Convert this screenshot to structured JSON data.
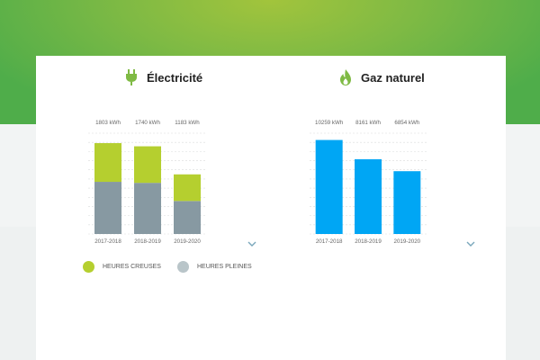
{
  "colors": {
    "hero_green": "#4fad4a",
    "hero_lime": "#a2c43c",
    "offpeak": "#b5cf2f",
    "peak": "#8799a2",
    "gas": "#00a6f4",
    "legend_peak": "#b9c5c9",
    "grid": "#d9dcdc",
    "chevron": "#79a7bb"
  },
  "electricity": {
    "title": "Électricité",
    "icon": "plug-icon"
  },
  "gas": {
    "title": "Gaz naturel",
    "icon": "flame-icon"
  },
  "legend": {
    "offpeak_label": "HEURES CREUSES",
    "peak_label": "HEURES PLEINES"
  },
  "chart_data": [
    {
      "type": "bar",
      "stacked": true,
      "unit": "kWh",
      "categories": [
        "2017-2018",
        "2018-2019",
        "2019-2020"
      ],
      "totals_labels": [
        "1803 kWh",
        "1740 kWh",
        "1183 kWh"
      ],
      "series": [
        {
          "name": "HEURES PLEINES",
          "values": [
            1035,
            1015,
            655
          ],
          "color": "#8799a2"
        },
        {
          "name": "HEURES CREUSES",
          "values": [
            768,
            725,
            528
          ],
          "color": "#b5cf2f"
        }
      ],
      "ylim": [
        0,
        2000
      ],
      "grid": true,
      "legend": "bottom-left"
    },
    {
      "type": "bar",
      "unit": "kWh",
      "categories": [
        "2017-2018",
        "2018-2019",
        "2019-2020"
      ],
      "totals_labels": [
        "10259 kWh",
        "8161 kWh",
        "6854 kWh"
      ],
      "series": [
        {
          "values": [
            10259,
            8161,
            6854
          ],
          "color": "#00a6f4"
        }
      ],
      "ylim": [
        0,
        11000
      ],
      "grid": true
    }
  ]
}
